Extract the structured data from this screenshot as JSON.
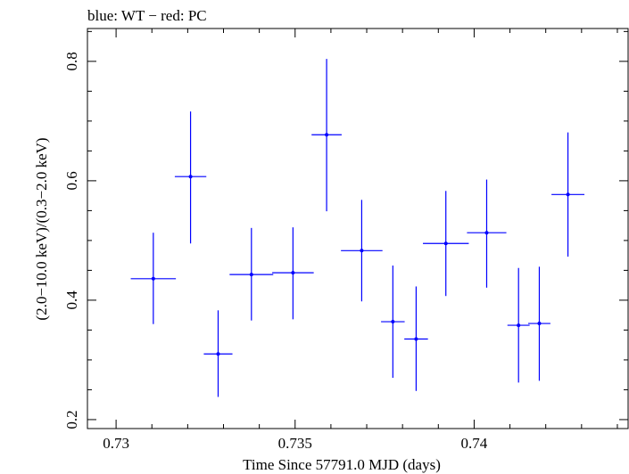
{
  "chart_data": {
    "type": "scatter",
    "title": "blue: WT − red: PC",
    "xlabel": "Time Since 57791.0 MJD (days)",
    "ylabel": "(2.0−10.0 keV)/(0.3−2.0 keV)",
    "xlim": [
      0.7292,
      0.7443
    ],
    "ylim": [
      0.185,
      0.855
    ],
    "x_ticks": [
      0.73,
      0.735,
      0.74
    ],
    "x_tick_labels": [
      "0.73",
      "0.735",
      "0.74"
    ],
    "y_ticks": [
      0.2,
      0.4,
      0.6,
      0.8
    ],
    "y_tick_labels": [
      "0.2",
      "0.4",
      "0.6",
      "0.8"
    ],
    "grid": false,
    "series": [
      {
        "color": "#0000ff",
        "points": [
          {
            "x": 0.73104,
            "y": 0.436,
            "xerr": 0.00063,
            "yerr_lo": 0.076,
            "yerr_hi": 0.077
          },
          {
            "x": 0.73208,
            "y": 0.607,
            "xerr": 0.00044,
            "yerr_lo": 0.112,
            "yerr_hi": 0.109
          },
          {
            "x": 0.73285,
            "y": 0.31,
            "xerr": 0.0004,
            "yerr_lo": 0.072,
            "yerr_hi": 0.073
          },
          {
            "x": 0.73378,
            "y": 0.443,
            "xerr": 0.00061,
            "yerr_lo": 0.077,
            "yerr_hi": 0.078
          },
          {
            "x": 0.73494,
            "y": 0.446,
            "xerr": 0.00058,
            "yerr_lo": 0.078,
            "yerr_hi": 0.076
          },
          {
            "x": 0.73588,
            "y": 0.677,
            "xerr": 0.00042,
            "yerr_lo": 0.128,
            "yerr_hi": 0.127
          },
          {
            "x": 0.73686,
            "y": 0.483,
            "xerr": 0.00058,
            "yerr_lo": 0.085,
            "yerr_hi": 0.085
          },
          {
            "x": 0.73773,
            "y": 0.364,
            "xerr": 0.00033,
            "yerr_lo": 0.094,
            "yerr_hi": 0.094
          },
          {
            "x": 0.73838,
            "y": 0.335,
            "xerr": 0.00033,
            "yerr_lo": 0.087,
            "yerr_hi": 0.088
          },
          {
            "x": 0.73921,
            "y": 0.495,
            "xerr": 0.00064,
            "yerr_lo": 0.088,
            "yerr_hi": 0.088
          },
          {
            "x": 0.74035,
            "y": 0.513,
            "xerr": 0.00055,
            "yerr_lo": 0.092,
            "yerr_hi": 0.089
          },
          {
            "x": 0.74124,
            "y": 0.358,
            "xerr": 0.00031,
            "yerr_lo": 0.096,
            "yerr_hi": 0.096
          },
          {
            "x": 0.74182,
            "y": 0.361,
            "xerr": 0.00031,
            "yerr_lo": 0.096,
            "yerr_hi": 0.095
          },
          {
            "x": 0.74262,
            "y": 0.577,
            "xerr": 0.00046,
            "yerr_lo": 0.104,
            "yerr_hi": 0.104
          }
        ]
      }
    ]
  }
}
